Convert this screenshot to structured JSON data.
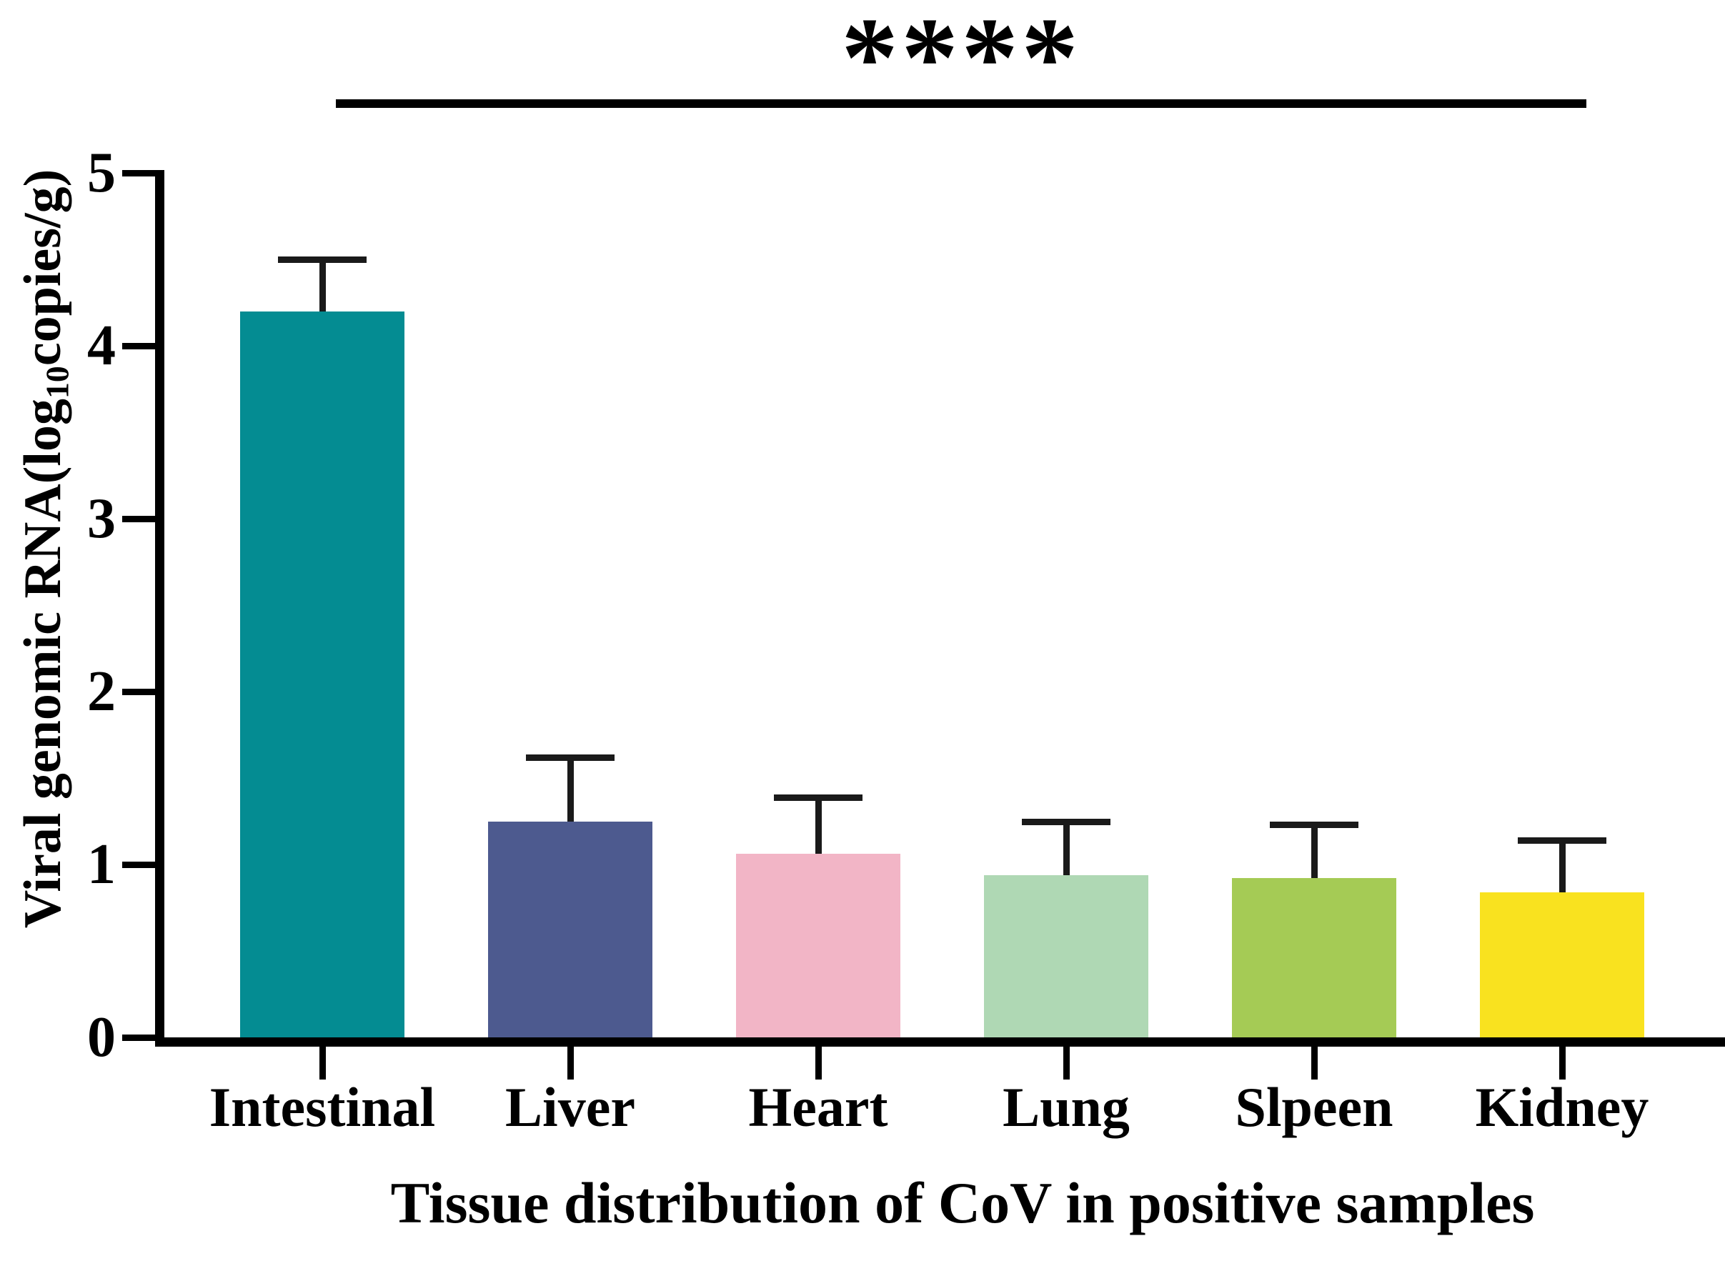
{
  "figure": {
    "background": "#ffffff",
    "significance": {
      "label": "****",
      "compared_groups": [
        "Intestinal",
        "Kidney"
      ]
    },
    "y_axis": {
      "title_prefix": "Viral genomic RNA(log",
      "title_sub": "10",
      "title_suffix": "copies/g)"
    },
    "x_axis": {
      "title": "Tissue distribution of CoV in positive samples"
    }
  },
  "chart_data": {
    "type": "bar",
    "title": "",
    "xlabel": "Tissue distribution of CoV in positive samples",
    "ylabel": "Viral genomic RNA(log10copies/g)",
    "categories": [
      "Intestinal",
      "Liver",
      "Heart",
      "Lung",
      "Slpeen",
      "Kidney"
    ],
    "values": [
      4.2,
      1.25,
      1.06,
      0.94,
      0.92,
      0.84
    ],
    "error_plus": [
      0.3,
      0.37,
      0.33,
      0.31,
      0.31,
      0.3
    ],
    "bar_colors": [
      "#048C92",
      "#4D5A8F",
      "#F2B5C6",
      "#AFD8B4",
      "#A5CB55",
      "#F9E21F"
    ],
    "axis_color": "#000000",
    "error_bar_color": "#1a1a1a",
    "ylim": [
      0,
      5
    ],
    "yticks": [
      0,
      1,
      2,
      3,
      4,
      5
    ],
    "grid": false,
    "legend": null,
    "error_direction": "plus-only",
    "annotation": "**** significance bracket spanning Intestinal to Kidney"
  }
}
